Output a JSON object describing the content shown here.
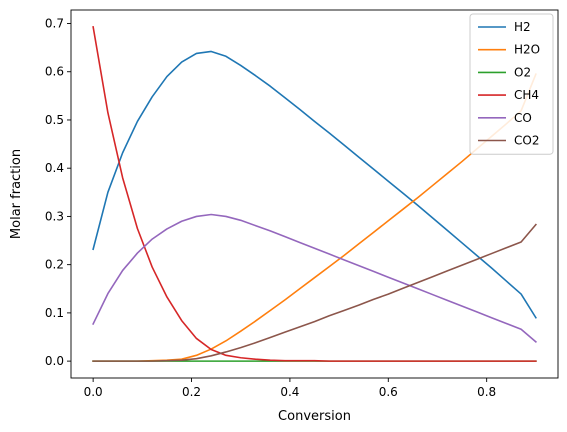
{
  "chart_data": {
    "type": "line",
    "title": "",
    "xlabel": "Conversion",
    "ylabel": "Molar fraction",
    "xlim": [
      -0.045,
      0.945
    ],
    "ylim": [
      -0.035,
      0.728
    ],
    "xticks": [
      0.0,
      0.2,
      0.4,
      0.6,
      0.8
    ],
    "xtick_labels": [
      "0.0",
      "0.2",
      "0.4",
      "0.6",
      "0.8"
    ],
    "yticks": [
      0.0,
      0.1,
      0.2,
      0.3,
      0.4,
      0.5,
      0.6,
      0.7
    ],
    "ytick_labels": [
      "0.0",
      "0.1",
      "0.2",
      "0.3",
      "0.4",
      "0.5",
      "0.6",
      "0.7"
    ],
    "grid": false,
    "legend_position": "top-right",
    "x": [
      0.0,
      0.03,
      0.06,
      0.09,
      0.12,
      0.15,
      0.18,
      0.21,
      0.24,
      0.27,
      0.3,
      0.33,
      0.36,
      0.39,
      0.42,
      0.45,
      0.48,
      0.51,
      0.54,
      0.57,
      0.6,
      0.63,
      0.66,
      0.69,
      0.72,
      0.75,
      0.78,
      0.81,
      0.84,
      0.87,
      0.9
    ],
    "series": [
      {
        "name": "H2",
        "color": "#1f77b4",
        "values": [
          0.232,
          0.35,
          0.432,
          0.497,
          0.548,
          0.59,
          0.62,
          0.638,
          0.642,
          0.632,
          0.613,
          0.592,
          0.57,
          0.546,
          0.522,
          0.497,
          0.473,
          0.448,
          0.423,
          0.398,
          0.373,
          0.348,
          0.323,
          0.297,
          0.271,
          0.245,
          0.219,
          0.193,
          0.166,
          0.139,
          0.09
        ]
      },
      {
        "name": "H2O",
        "color": "#ff7f0e",
        "values": [
          0.0,
          0.0,
          0.0,
          0.0,
          0.001,
          0.002,
          0.004,
          0.012,
          0.025,
          0.042,
          0.062,
          0.083,
          0.105,
          0.127,
          0.15,
          0.173,
          0.196,
          0.219,
          0.243,
          0.267,
          0.291,
          0.315,
          0.339,
          0.364,
          0.389,
          0.414,
          0.44,
          0.466,
          0.492,
          0.519,
          0.595
        ]
      },
      {
        "name": "O2",
        "color": "#2ca02c",
        "values": [
          0.0,
          0.0,
          0.0,
          0.0,
          0.0,
          0.0,
          0.0,
          0.0,
          0.0,
          0.0,
          0.0,
          0.0,
          0.0,
          0.0,
          0.0,
          0.0,
          0.0,
          0.0,
          0.0,
          0.0,
          0.0,
          0.0,
          0.0,
          0.0,
          0.0,
          0.0,
          0.0,
          0.0,
          0.0,
          0.0,
          0.0
        ]
      },
      {
        "name": "CH4",
        "color": "#d62728",
        "values": [
          0.693,
          0.515,
          0.38,
          0.275,
          0.195,
          0.133,
          0.084,
          0.047,
          0.024,
          0.012,
          0.007,
          0.004,
          0.002,
          0.001,
          0.001,
          0.001,
          0.0,
          0.0,
          0.0,
          0.0,
          0.0,
          0.0,
          0.0,
          0.0,
          0.0,
          0.0,
          0.0,
          0.0,
          0.0,
          0.0,
          0.0
        ]
      },
      {
        "name": "CO",
        "color": "#9467bd",
        "values": [
          0.077,
          0.14,
          0.188,
          0.224,
          0.253,
          0.274,
          0.29,
          0.3,
          0.304,
          0.3,
          0.292,
          0.281,
          0.27,
          0.258,
          0.246,
          0.234,
          0.222,
          0.21,
          0.198,
          0.186,
          0.174,
          0.162,
          0.15,
          0.138,
          0.126,
          0.114,
          0.102,
          0.09,
          0.078,
          0.066,
          0.04
        ]
      },
      {
        "name": "CO2",
        "color": "#8c564b",
        "values": [
          0.0,
          0.0,
          0.0,
          0.0,
          0.0,
          0.001,
          0.002,
          0.005,
          0.011,
          0.019,
          0.028,
          0.038,
          0.049,
          0.06,
          0.071,
          0.082,
          0.094,
          0.105,
          0.116,
          0.128,
          0.139,
          0.151,
          0.163,
          0.175,
          0.187,
          0.199,
          0.211,
          0.223,
          0.235,
          0.247,
          0.283
        ]
      }
    ]
  }
}
